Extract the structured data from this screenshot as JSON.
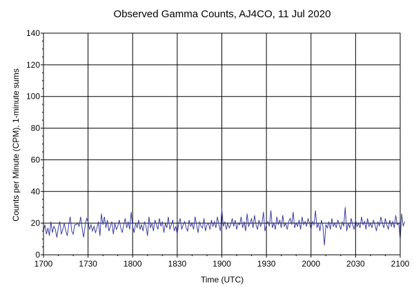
{
  "chart_data": {
    "type": "line",
    "title": "Observed Gamma Counts, AJ4CO, 11 Jul 2020",
    "xlabel": "Time (UTC)",
    "ylabel": "Counts per Minute (CPM), 1-minute sums",
    "x_range_minutes": [
      0,
      240
    ],
    "xticks": [
      {
        "label": "1700",
        "minute": 0
      },
      {
        "label": "1730",
        "minute": 30
      },
      {
        "label": "1800",
        "minute": 60
      },
      {
        "label": "1830",
        "minute": 90
      },
      {
        "label": "1900",
        "minute": 120
      },
      {
        "label": "1930",
        "minute": 150
      },
      {
        "label": "2000",
        "minute": 180
      },
      {
        "label": "2030",
        "minute": 210
      },
      {
        "label": "2100",
        "minute": 240
      }
    ],
    "ylim": [
      0,
      140
    ],
    "yticks": [
      0,
      20,
      40,
      60,
      80,
      100,
      120,
      140
    ],
    "y_minor_step": 5,
    "grid": true,
    "line_color": "#3c3c9c",
    "series": [
      {
        "x_start_minute": 0,
        "x_step_minutes": 1,
        "values": [
          15,
          19,
          13,
          17,
          12,
          21,
          14,
          18,
          16,
          11,
          17,
          21,
          13,
          16,
          20,
          15,
          12,
          19,
          24,
          15,
          13,
          19,
          19,
          20,
          18,
          24,
          17,
          11,
          18,
          23,
          21,
          16,
          19,
          15,
          18,
          14,
          17,
          21,
          12,
          26,
          19,
          24,
          17,
          22,
          15,
          18,
          21,
          13,
          20,
          16,
          18,
          22,
          17,
          14,
          19,
          23,
          17,
          21,
          16,
          27,
          18,
          14,
          20,
          17,
          22,
          16,
          19,
          15,
          21,
          18,
          12,
          24,
          17,
          20,
          15,
          22,
          19,
          16,
          23,
          18,
          21,
          14,
          20,
          17,
          24,
          16,
          19,
          22,
          15,
          18,
          13,
          20,
          23,
          16,
          19,
          21,
          17,
          15,
          22,
          18,
          20,
          16,
          24,
          19,
          14,
          21,
          18,
          17,
          23,
          15,
          19,
          20,
          16,
          22,
          18,
          21,
          17,
          24,
          19,
          15,
          29,
          18,
          21,
          16,
          20,
          17,
          19,
          23,
          18,
          22,
          16,
          20,
          19,
          24,
          17,
          21,
          15,
          26,
          18,
          20,
          23,
          17,
          25,
          19,
          16,
          22,
          18,
          20,
          27,
          15,
          19,
          21,
          18,
          28,
          17,
          20,
          16,
          24,
          19,
          22,
          17,
          25,
          18,
          20,
          16,
          21,
          23,
          19,
          27,
          17,
          20,
          18,
          22,
          16,
          24,
          19,
          21,
          18,
          23,
          20,
          16,
          21,
          19,
          28,
          17,
          20,
          15,
          22,
          18,
          6,
          19,
          17,
          21,
          16,
          23,
          18,
          20,
          17,
          22,
          19,
          16,
          21,
          18,
          30,
          15,
          20,
          17,
          23,
          19,
          16,
          22,
          18,
          20,
          17,
          24,
          19,
          21,
          16,
          23,
          18,
          20,
          17,
          22,
          19,
          15,
          21,
          18,
          24,
          20,
          17,
          23,
          19,
          16,
          22,
          18,
          21,
          17,
          25,
          19,
          20,
          10,
          26,
          18,
          21
        ]
      }
    ]
  }
}
